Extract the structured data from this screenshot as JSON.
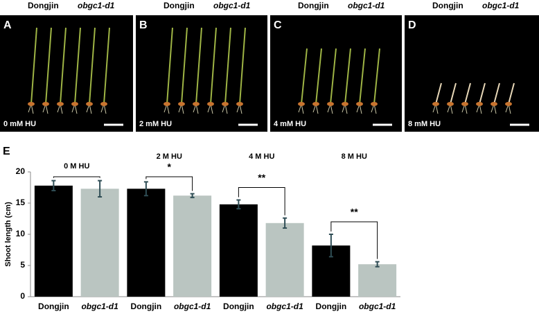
{
  "panels": [
    {
      "letter": "A",
      "genotypes": [
        "Dongjin",
        "obgc1-d1"
      ],
      "treatment": "0 mM HU"
    },
    {
      "letter": "B",
      "genotypes": [
        "Dongjin",
        "obgc1-d1"
      ],
      "treatment": "2 mM HU"
    },
    {
      "letter": "C",
      "genotypes": [
        "Dongjin",
        "obgc1-d1"
      ],
      "treatment": "4 mM HU"
    },
    {
      "letter": "D",
      "genotypes": [
        "Dongjin",
        "obgc1-d1"
      ],
      "treatment": "8 mM HU"
    }
  ],
  "chart_data": {
    "type": "bar",
    "letter": "E",
    "y_label": "Shoot length (cm)",
    "categories": [
      "Dongjin",
      "obgc1-d1",
      "Dongjin",
      "obgc1-d1",
      "Dongjin",
      "obgc1-d1",
      "Dongjin",
      "obgc1-d1"
    ],
    "values": [
      17.8,
      17.3,
      17.3,
      16.2,
      14.8,
      11.8,
      8.2,
      5.2
    ],
    "errors": [
      0.8,
      1.3,
      1.1,
      0.3,
      0.7,
      0.8,
      1.8,
      0.4
    ],
    "colors": [
      "#000000",
      "#bac5c1",
      "#000000",
      "#bac5c1",
      "#000000",
      "#bac5c1",
      "#000000",
      "#bac5c1"
    ],
    "groups": [
      {
        "label": "0 M HU"
      },
      {
        "label": "2 M HU",
        "stars": "*"
      },
      {
        "label": "4 M HU",
        "stars": "**"
      },
      {
        "label": "8 M HU",
        "stars": "**"
      }
    ],
    "ylim": [
      0,
      20
    ],
    "yticks": [
      0,
      5,
      10,
      15,
      20
    ]
  }
}
